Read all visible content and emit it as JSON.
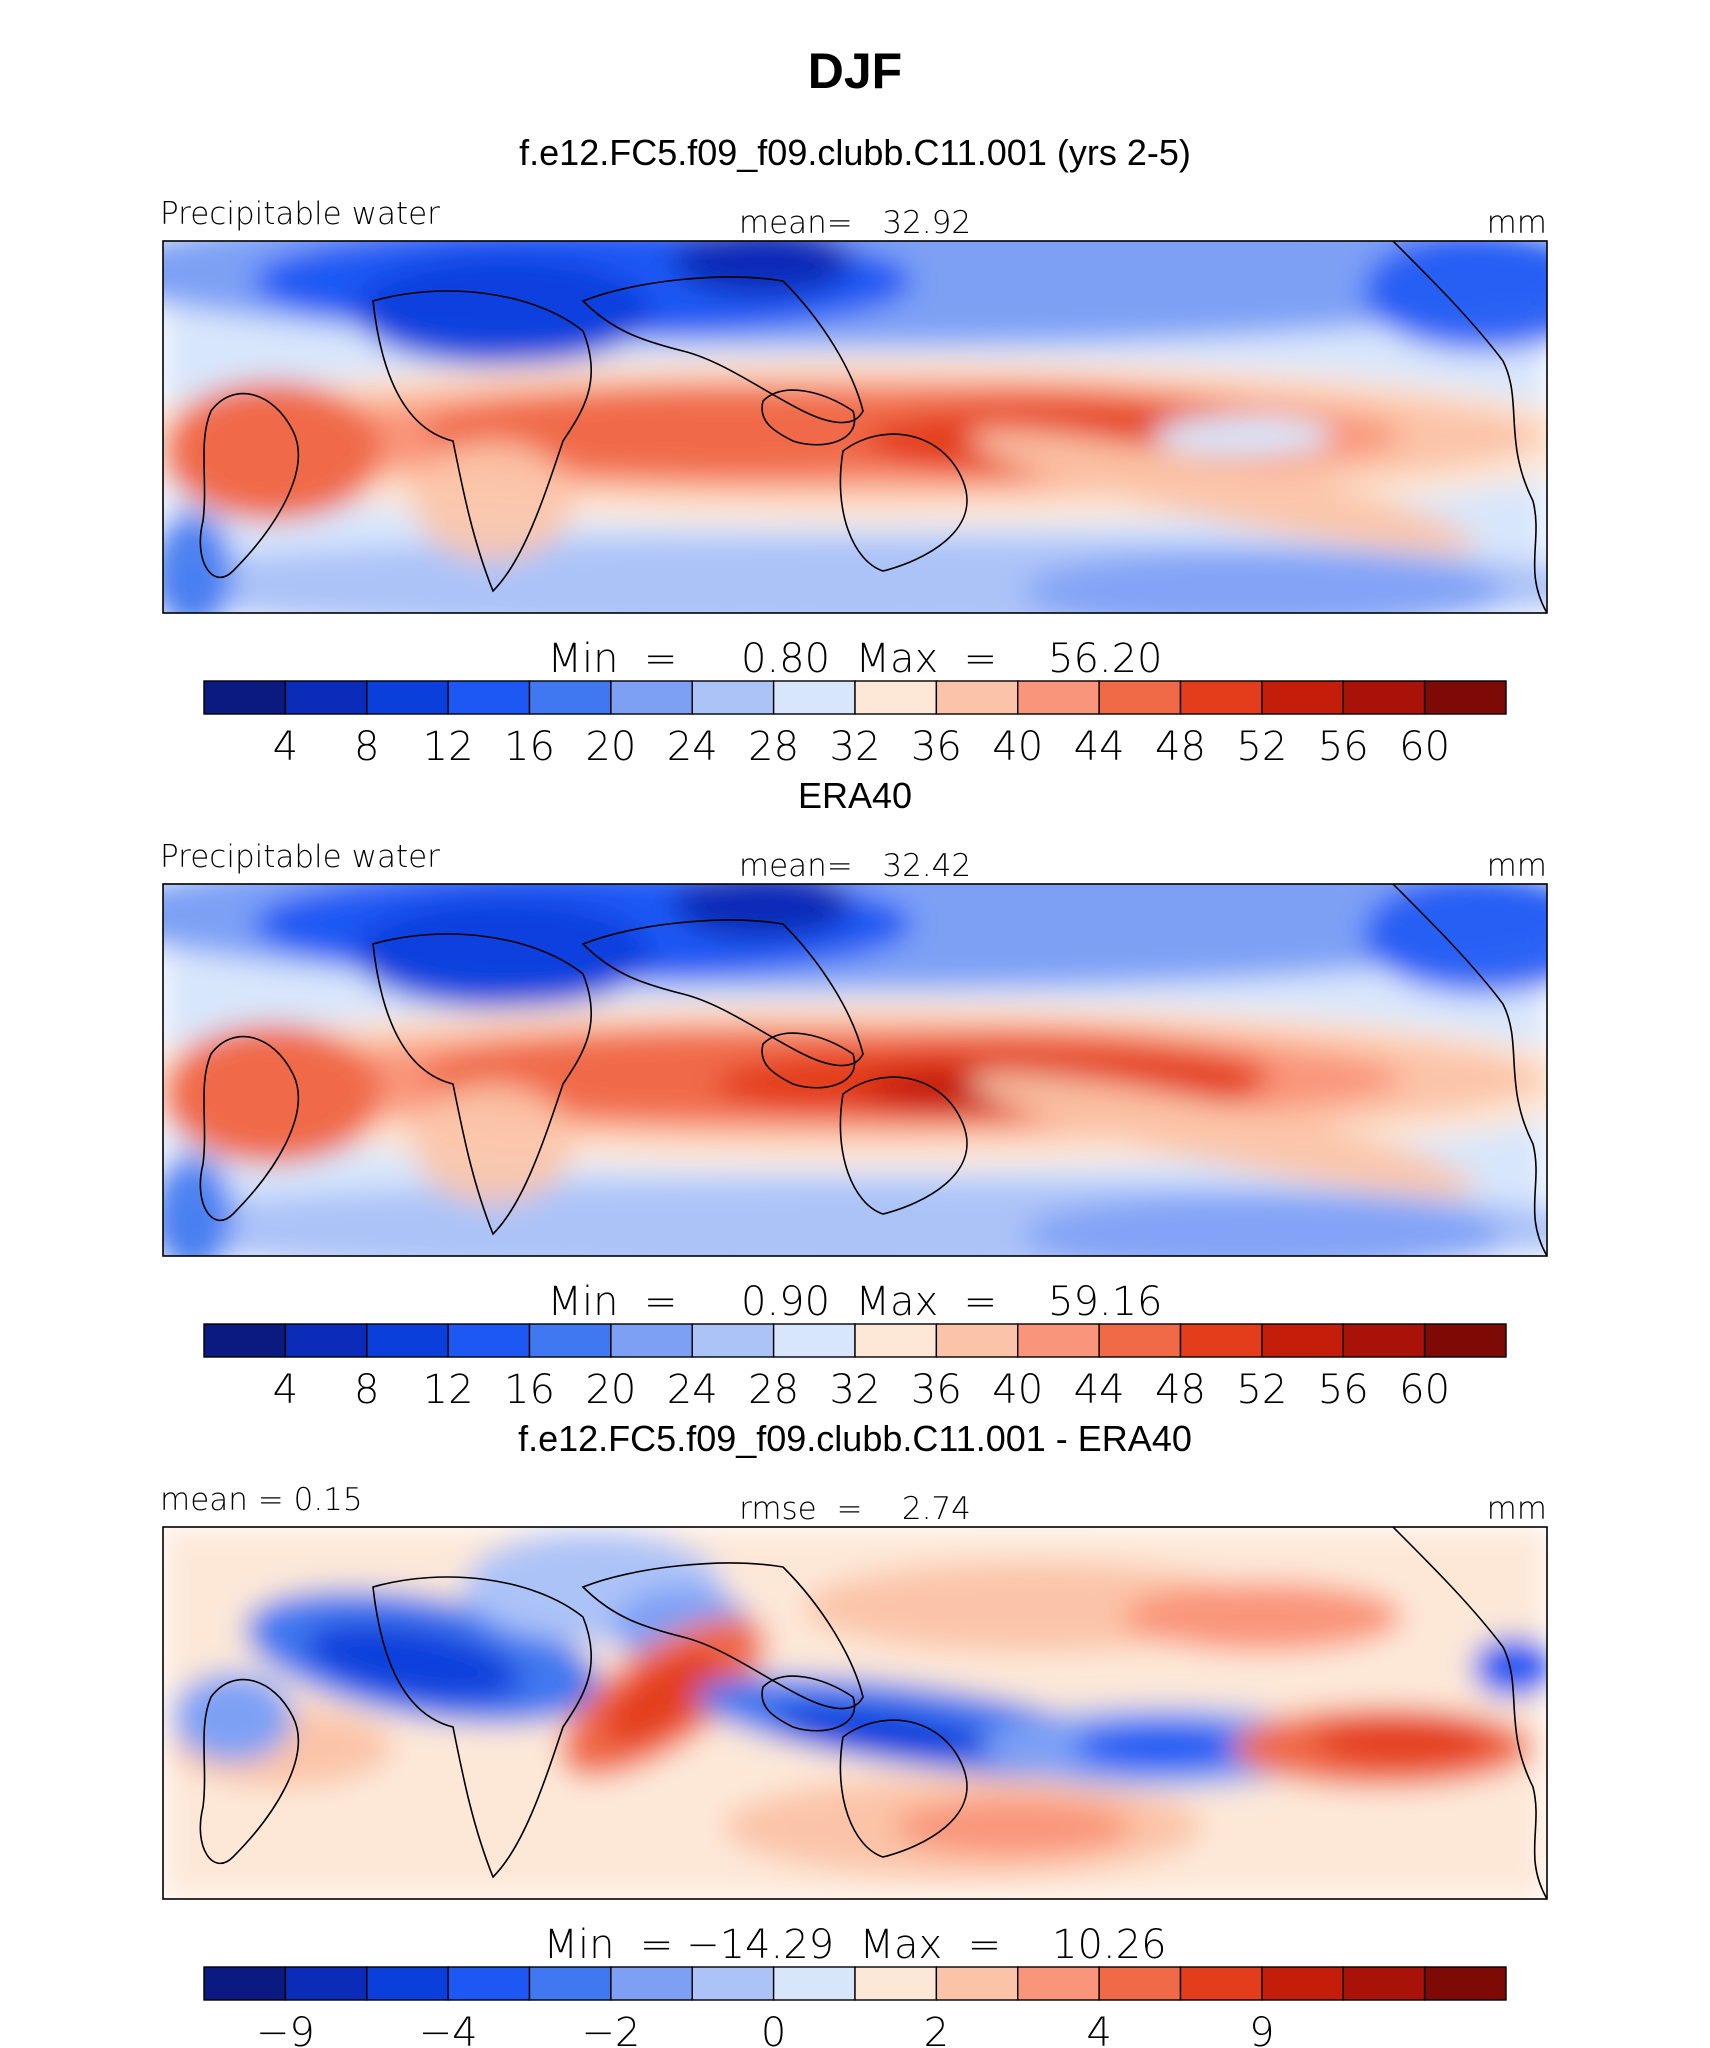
{
  "title": "DJF",
  "chart_data": [
    {
      "type": "heatmap",
      "title": "f.e12.FC5.f09_f09.clubb.C11.001 (yrs 2-5)",
      "left_label": "Precipitable water",
      "center_label": "mean=   32.92",
      "units": "mm",
      "stats": "Min  =     0.80  Max  =    56.20",
      "min": 0.8,
      "max": 56.2,
      "mean": 32.92,
      "colorbar_ticks": [
        "4",
        "8",
        "12",
        "16",
        "20",
        "24",
        "28",
        "32",
        "36",
        "40",
        "44",
        "48",
        "52",
        "56",
        "60"
      ]
    },
    {
      "type": "heatmap",
      "title": "ERA40",
      "left_label": "Precipitable water",
      "center_label": "mean=   32.42",
      "units": "mm",
      "stats": "Min  =     0.90  Max  =    59.16",
      "min": 0.9,
      "max": 59.16,
      "mean": 32.42,
      "colorbar_ticks": [
        "4",
        "8",
        "12",
        "16",
        "20",
        "24",
        "28",
        "32",
        "36",
        "40",
        "44",
        "48",
        "52",
        "56",
        "60"
      ]
    },
    {
      "type": "heatmap",
      "title": "f.e12.FC5.f09_f09.clubb.C11.001 - ERA40",
      "left_label": "mean =    0.15",
      "center_label": "rmse  =    2.74",
      "units": "mm",
      "stats": "Min  = −14.29  Max  =    10.26",
      "min": -14.29,
      "max": 10.26,
      "mean": 0.15,
      "rmse": 2.74,
      "colorbar_ticks": [
        "−9",
        "",
        "−4",
        "",
        "−2",
        "",
        "0",
        "",
        "2",
        "",
        "4",
        "",
        "9",
        ""
      ]
    }
  ],
  "colors": {
    "scale": [
      "#0a1a80",
      "#0a2cb8",
      "#0a3fdc",
      "#1d58f4",
      "#3f78f0",
      "#7da0f5",
      "#acc3f8",
      "#d8e6fb",
      "#fde8d8",
      "#fbc4a8",
      "#f9957a",
      "#f06a48",
      "#e43d1c",
      "#c41d0a",
      "#a81208",
      "#7e0a06"
    ]
  }
}
